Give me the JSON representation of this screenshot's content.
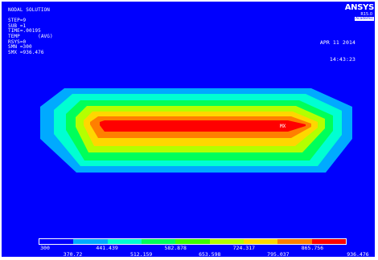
{
  "window_title": "ANSYS",
  "logo": {
    "text": "ANSYS",
    "version": "R15.0",
    "edition": "Academic"
  },
  "info": {
    "lines": [
      "NODAL SOLUTION",
      "",
      "STEP=9",
      "SUB =1",
      "TIME=.00195",
      "TEMP      (AVG)",
      "RSYS=0",
      "SMN =300",
      "SMX =936.476"
    ]
  },
  "date": {
    "line1": "APR 11 2014",
    "line2": "14:43:23"
  },
  "max_marker": "MX",
  "legend": {
    "colors": [
      "#0000fe",
      "#00aaff",
      "#00ffd2",
      "#00ff5a",
      "#3cff00",
      "#b4ff00",
      "#ffd700",
      "#ff7f00",
      "#ff0000"
    ],
    "labels_top": [
      "300",
      "441.439",
      "582.878",
      "724.317",
      "865.756"
    ],
    "labels_bottom": [
      "370.72",
      "512.159",
      "653.598",
      "795.037",
      "936.476"
    ]
  },
  "contour_bands": [
    {
      "level": 1,
      "color": "#00aaff"
    },
    {
      "level": 2,
      "color": "#00ffd2"
    },
    {
      "level": 3,
      "color": "#00ff5a"
    },
    {
      "level": 4,
      "color": "#b4ff00"
    },
    {
      "level": 5,
      "color": "#ffd700"
    },
    {
      "level": 6,
      "color": "#ff7f00"
    },
    {
      "level": 7,
      "color": "#ff0000"
    }
  ]
}
